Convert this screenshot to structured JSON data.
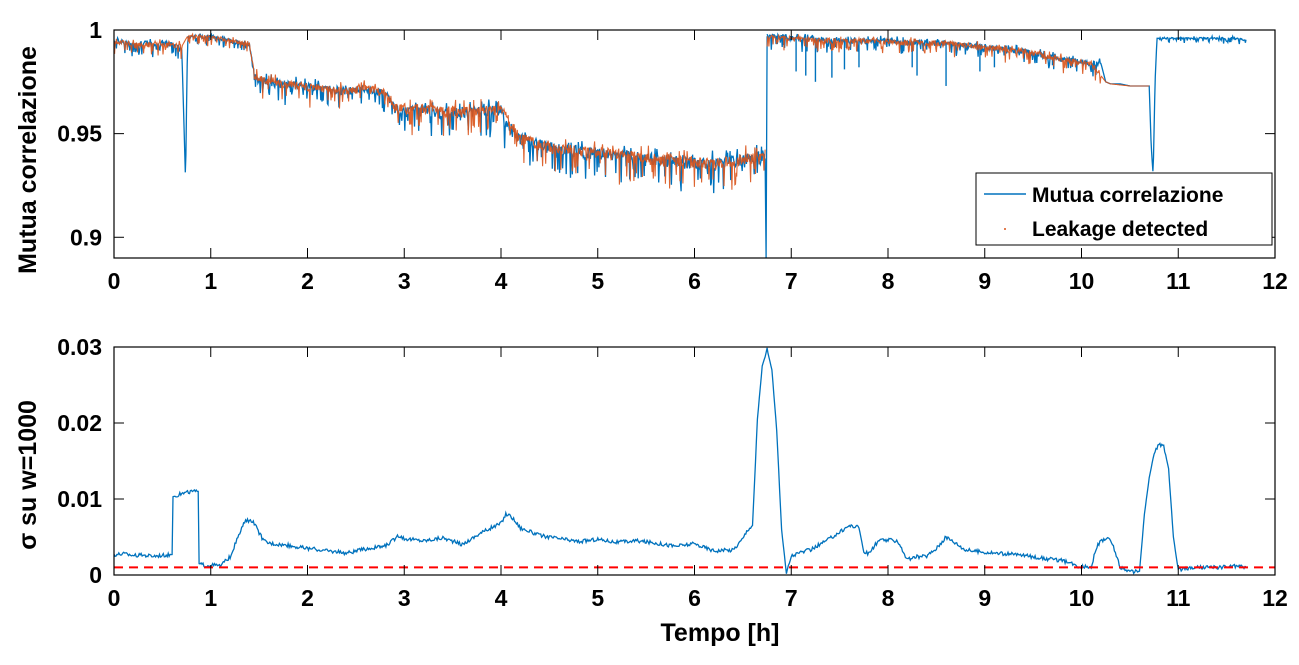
{
  "chart_data": [
    {
      "type": "line",
      "ylabel": "Mutua correlazione",
      "xlim": [
        0,
        12
      ],
      "ylim": [
        0.89,
        1.0
      ],
      "xticks": [
        "0",
        "1",
        "2",
        "3",
        "4",
        "5",
        "6",
        "7",
        "8",
        "9",
        "10",
        "11",
        "12"
      ],
      "yticks": [
        {
          "value": 0.9,
          "label": "0.9"
        },
        {
          "value": 0.95,
          "label": "0.95"
        },
        {
          "value": 1.0,
          "label": "1"
        }
      ],
      "legend": {
        "placement": "bottom-right",
        "entries": [
          "Mutua correlazione",
          "Leakage detected"
        ]
      },
      "series": [
        {
          "name": "Mutua correlazione",
          "color": "#0072BD",
          "segments": [
            {
              "x": [
                0,
                0.1,
                0.2,
                0.3,
                0.4,
                0.5,
                0.6,
                0.7,
                0.72,
                0.74,
                0.76,
                0.8,
                0.9,
                1.0,
                1.1,
                1.2,
                1.3,
                1.4,
                1.45,
                1.5,
                1.6,
                1.8,
                2.0,
                2.2,
                2.4,
                2.6,
                2.8,
                2.9,
                3.0,
                3.2,
                3.4,
                3.6,
                3.8,
                4.0,
                4.05,
                4.2,
                4.4,
                4.6,
                4.8,
                5.0,
                5.2,
                5.4,
                5.6,
                5.8,
                6.0,
                6.2,
                6.4,
                6.6,
                6.7,
                6.73
              ],
              "y": [
                0.995,
                0.994,
                0.993,
                0.994,
                0.993,
                0.994,
                0.993,
                0.992,
                0.96,
                0.927,
                0.997,
                0.997,
                0.997,
                0.997,
                0.996,
                0.995,
                0.994,
                0.993,
                0.978,
                0.976,
                0.975,
                0.974,
                0.973,
                0.972,
                0.971,
                0.972,
                0.97,
                0.963,
                0.961,
                0.962,
                0.96,
                0.961,
                0.961,
                0.962,
                0.955,
                0.948,
                0.945,
                0.943,
                0.942,
                0.941,
                0.94,
                0.939,
                0.938,
                0.937,
                0.936,
                0.936,
                0.937,
                0.939,
                0.94,
                0.938
              ]
            },
            {
              "x": [
                6.73,
                6.74,
                6.75
              ],
              "y": [
                0.938,
                0.89,
                0.997
              ]
            },
            {
              "x": [
                6.75,
                6.9,
                7.0,
                7.2,
                7.4,
                7.6,
                7.8,
                8.0,
                8.2,
                8.4,
                8.6,
                8.8,
                9.0,
                9.2,
                9.4,
                9.6,
                9.8,
                10.0,
                10.1,
                10.2,
                10.25,
                10.3,
                10.4,
                10.5,
                10.6,
                10.7,
                10.72,
                10.74,
                10.76,
                10.78,
                10.8,
                11.0,
                11.2,
                11.4,
                11.6,
                11.7
              ],
              "y": [
                0.997,
                0.997,
                0.996,
                0.996,
                0.995,
                0.995,
                0.995,
                0.995,
                0.994,
                0.994,
                0.994,
                0.993,
                0.992,
                0.991,
                0.99,
                0.988,
                0.986,
                0.985,
                0.984,
                0.984,
                0.975,
                0.974,
                0.974,
                0.973,
                0.973,
                0.973,
                0.945,
                0.93,
                0.975,
                0.996,
                0.996,
                0.996,
                0.996,
                0.996,
                0.996,
                0.995
              ]
            }
          ]
        },
        {
          "name": "Leakage detected",
          "color": "#D95319",
          "segments": [
            {
              "x": [
                0,
                0.2,
                0.4,
                0.6,
                0.7,
                0.76,
                0.9,
                1.1,
                1.3,
                1.4,
                1.45,
                1.6,
                1.8,
                2.0,
                2.2,
                2.4,
                2.6,
                2.8,
                2.9,
                3.2,
                3.6,
                4.0,
                4.2,
                4.6,
                5.0,
                5.4,
                5.8,
                6.2,
                6.6,
                6.73
              ],
              "y": [
                0.995,
                0.993,
                0.993,
                0.993,
                0.992,
                0.997,
                0.997,
                0.996,
                0.994,
                0.993,
                0.978,
                0.975,
                0.974,
                0.973,
                0.972,
                0.971,
                0.972,
                0.97,
                0.963,
                0.962,
                0.961,
                0.962,
                0.948,
                0.943,
                0.941,
                0.939,
                0.937,
                0.936,
                0.939,
                0.938
              ]
            },
            {
              "x": [
                6.75,
                7.0,
                7.4,
                7.8,
                8.2,
                8.6,
                9.0,
                9.4,
                9.8,
                10.1,
                10.25,
                10.3,
                10.5,
                10.7
              ],
              "y": [
                0.997,
                0.996,
                0.995,
                0.995,
                0.994,
                0.994,
                0.992,
                0.99,
                0.986,
                0.984,
                0.975,
                0.974,
                0.973,
                0.973
              ]
            }
          ]
        }
      ],
      "noise": {
        "series": "Mutua correlazione",
        "ranges": [
          {
            "x": [
              0,
              0.7
            ],
            "amp": 0.004
          },
          {
            "x": [
              0.76,
              1.42
            ],
            "amp": 0.003
          },
          {
            "x": [
              1.42,
              2.9
            ],
            "amp": 0.006
          },
          {
            "x": [
              2.9,
              4.0
            ],
            "amp": 0.008
          },
          {
            "x": [
              4.0,
              6.73
            ],
            "amp": 0.009
          },
          {
            "x": [
              6.75,
              10.2
            ],
            "amp": 0.004
          },
          {
            "x": [
              10.8,
              11.7
            ],
            "amp": 0.0015
          }
        ],
        "spikes": [
          {
            "x": 7.05,
            "y": 0.98
          },
          {
            "x": 7.15,
            "y": 0.978
          },
          {
            "x": 7.25,
            "y": 0.975
          },
          {
            "x": 7.42,
            "y": 0.977
          },
          {
            "x": 7.55,
            "y": 0.981
          },
          {
            "x": 7.7,
            "y": 0.982
          },
          {
            "x": 8.25,
            "y": 0.982
          },
          {
            "x": 8.3,
            "y": 0.978
          },
          {
            "x": 8.6,
            "y": 0.973
          },
          {
            "x": 8.95,
            "y": 0.98
          },
          {
            "x": 9.1,
            "y": 0.982
          },
          {
            "x": 9.52,
            "y": 0.984
          },
          {
            "x": 9.7,
            "y": 0.983
          }
        ]
      }
    },
    {
      "type": "line",
      "ylabel": "σ su w=1000",
      "xlabel": "Tempo [h]",
      "xlim": [
        0,
        12
      ],
      "ylim": [
        0,
        0.03
      ],
      "xticks": [
        "0",
        "1",
        "2",
        "3",
        "4",
        "5",
        "6",
        "7",
        "8",
        "9",
        "10",
        "11",
        "12"
      ],
      "yticks": [
        {
          "value": 0,
          "label": "0"
        },
        {
          "value": 0.01,
          "label": "0.01"
        },
        {
          "value": 0.02,
          "label": "0.02"
        },
        {
          "value": 0.03,
          "label": "0.03"
        }
      ],
      "series": [
        {
          "color": "#0072BD",
          "x": [
            0,
            0.1,
            0.2,
            0.3,
            0.4,
            0.5,
            0.6,
            0.61,
            0.7,
            0.8,
            0.87,
            0.88,
            0.95,
            1.0,
            1.1,
            1.2,
            1.3,
            1.35,
            1.4,
            1.45,
            1.5,
            1.55,
            1.6,
            1.8,
            2.0,
            2.2,
            2.4,
            2.6,
            2.8,
            2.95,
            3.0,
            3.2,
            3.4,
            3.6,
            3.8,
            4.0,
            4.05,
            4.1,
            4.2,
            4.4,
            4.6,
            4.8,
            5.0,
            5.2,
            5.4,
            5.6,
            5.8,
            6.0,
            6.2,
            6.4,
            6.5,
            6.55,
            6.6,
            6.65,
            6.7,
            6.75,
            6.8,
            6.85,
            6.9,
            6.95,
            7.0,
            7.1,
            7.2,
            7.4,
            7.6,
            7.7,
            7.75,
            7.8,
            7.9,
            8.0,
            8.1,
            8.2,
            8.3,
            8.4,
            8.5,
            8.6,
            8.7,
            8.8,
            9.0,
            9.2,
            9.4,
            9.6,
            9.8,
            10.0,
            10.05,
            10.1,
            10.15,
            10.2,
            10.25,
            10.3,
            10.35,
            10.4,
            10.45,
            10.5,
            10.6,
            10.65,
            10.7,
            10.75,
            10.8,
            10.85,
            10.9,
            10.95,
            11.0,
            11.05,
            11.2,
            11.4,
            11.6,
            11.7
          ],
          "y": [
            0.0027,
            0.0028,
            0.0026,
            0.0026,
            0.0025,
            0.0026,
            0.0027,
            0.0103,
            0.0107,
            0.011,
            0.011,
            0.0015,
            0.0012,
            0.0013,
            0.0012,
            0.0024,
            0.0055,
            0.007,
            0.0072,
            0.0068,
            0.0055,
            0.0045,
            0.0042,
            0.0039,
            0.0035,
            0.0032,
            0.0029,
            0.0034,
            0.0038,
            0.0052,
            0.0048,
            0.0045,
            0.0049,
            0.004,
            0.0056,
            0.0068,
            0.008,
            0.0078,
            0.0062,
            0.0052,
            0.0048,
            0.0044,
            0.0047,
            0.0043,
            0.0045,
            0.0042,
            0.0038,
            0.0041,
            0.0032,
            0.0033,
            0.0048,
            0.006,
            0.0065,
            0.0205,
            0.0275,
            0.0297,
            0.027,
            0.019,
            0.006,
            0.0002,
            0.0025,
            0.003,
            0.0033,
            0.0048,
            0.0065,
            0.0063,
            0.003,
            0.0028,
            0.0045,
            0.0046,
            0.0045,
            0.002,
            0.0024,
            0.0025,
            0.0035,
            0.005,
            0.0042,
            0.0033,
            0.003,
            0.0028,
            0.0026,
            0.0022,
            0.0019,
            0.001,
            0.0012,
            0.001,
            0.0035,
            0.0045,
            0.0048,
            0.0046,
            0.003,
            0.001,
            0.0008,
            0.0004,
            0.0005,
            0.008,
            0.0128,
            0.016,
            0.0172,
            0.017,
            0.014,
            0.005,
            0.0006,
            0.0008,
            0.001,
            0.001,
            0.0012,
            0.001
          ]
        }
      ],
      "threshold": {
        "y": 0.001,
        "color": "#FF0000",
        "style": "dashed",
        "x": [
          0,
          12
        ]
      }
    }
  ]
}
